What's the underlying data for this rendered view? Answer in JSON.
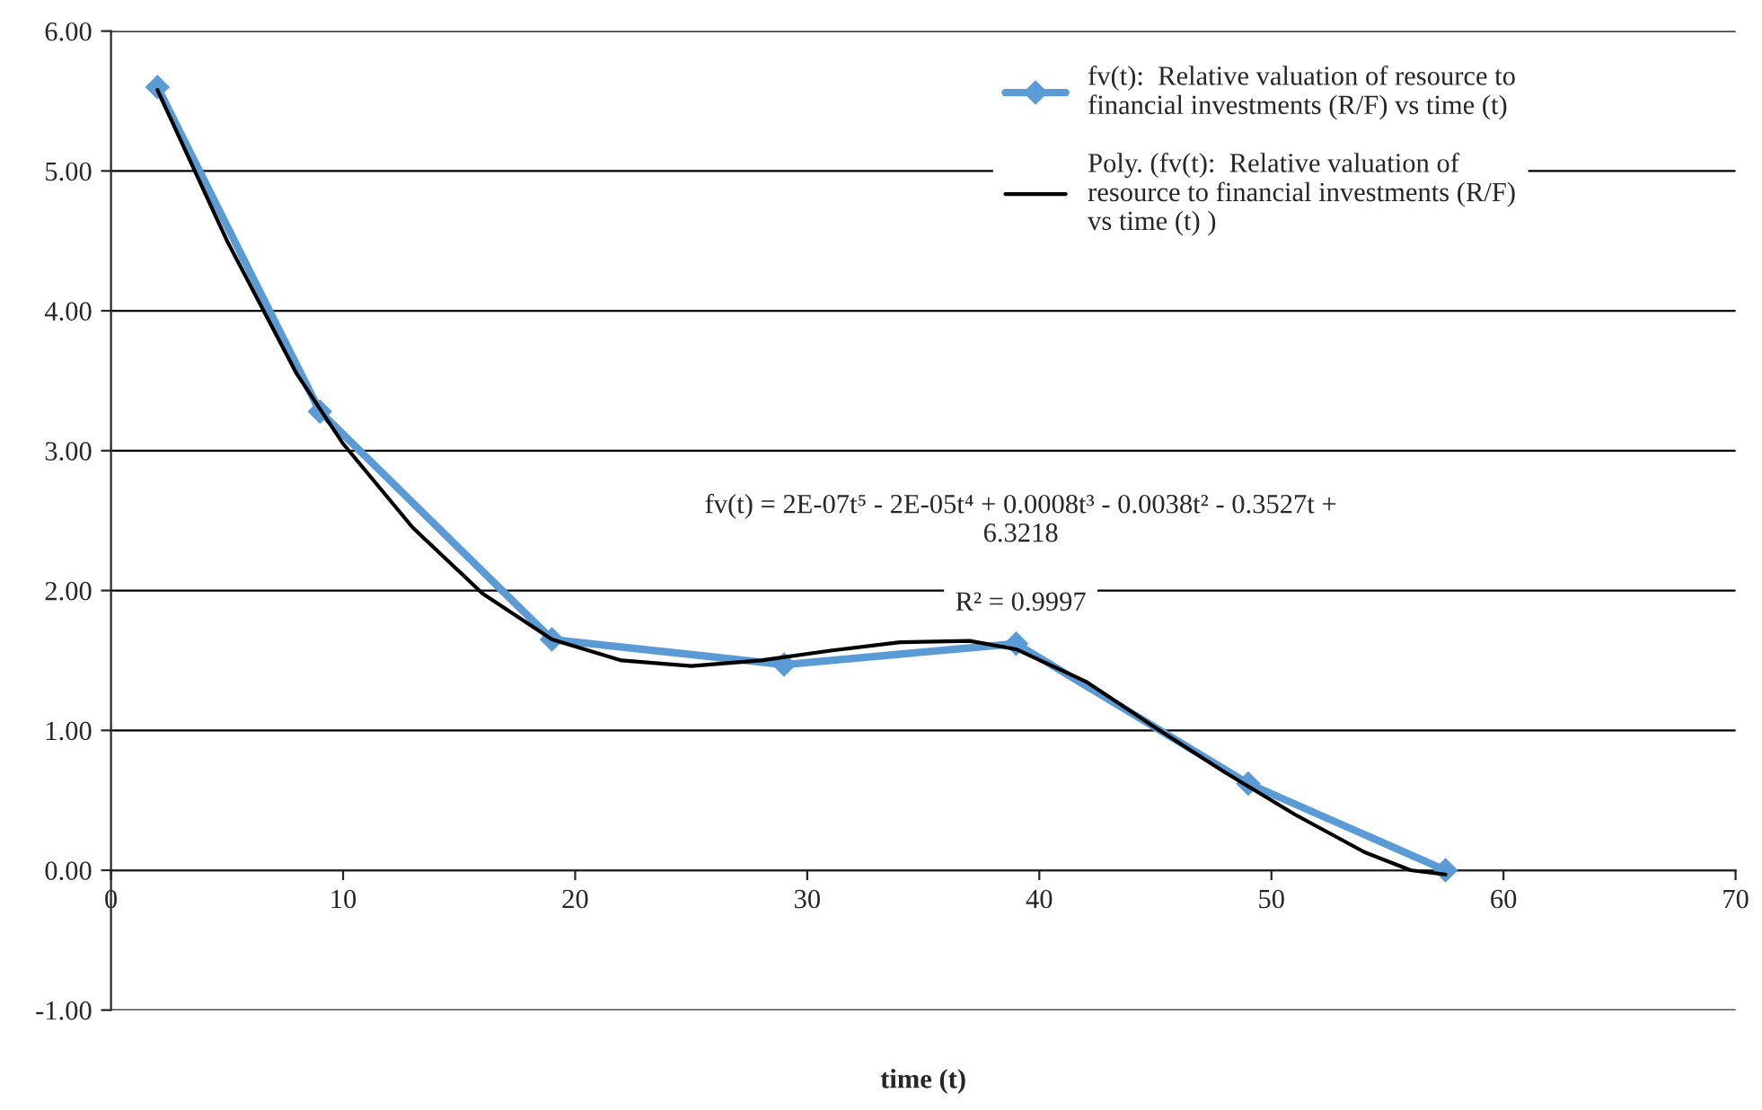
{
  "chart_data": {
    "type": "line",
    "xlabel": "time (t)",
    "xlim": [
      0,
      70
    ],
    "xticks": [
      0,
      10,
      20,
      30,
      40,
      50,
      60,
      70
    ],
    "ylim": [
      -1,
      6
    ],
    "yticks": [
      {
        "value": -1,
        "label": "-1.00"
      },
      {
        "value": 0,
        "label": "0.00"
      },
      {
        "value": 1,
        "label": "1.00"
      },
      {
        "value": 2,
        "label": "2.00"
      },
      {
        "value": 3,
        "label": "3.00"
      },
      {
        "value": 4,
        "label": "4.00"
      },
      {
        "value": 5,
        "label": "5.00"
      },
      {
        "value": 6,
        "label": "6.00"
      }
    ],
    "grid": "y",
    "legend": "top right",
    "series": [
      {
        "name": "fv(t):  Relative valuation of resource to\nfinancial investments (R/F) vs time (t)",
        "color": "#5b9bd5",
        "marker": "diamond",
        "line_style": "solid",
        "x": [
          2,
          9,
          19,
          29,
          39,
          49,
          57.5
        ],
        "values": [
          5.6,
          3.28,
          1.65,
          1.47,
          1.62,
          0.62,
          0.0
        ]
      },
      {
        "name": "Poly. (fv(t):  Relative valuation of\nresource to financial investments (R/F)\nvs time (t) )",
        "color": "#000000",
        "marker": "none",
        "line_style": "solid",
        "x": [
          2,
          5,
          8,
          10,
          13,
          16,
          19,
          22,
          25,
          28,
          31,
          34,
          37,
          39,
          42,
          45,
          48,
          51,
          54,
          56,
          57.5
        ],
        "values": [
          5.58,
          4.5,
          3.55,
          3.05,
          2.45,
          1.98,
          1.65,
          1.5,
          1.46,
          1.5,
          1.57,
          1.63,
          1.64,
          1.58,
          1.35,
          1.02,
          0.7,
          0.4,
          0.13,
          0.0,
          -0.03
        ]
      }
    ],
    "annotations": [
      "fv(t) = 2E-07t⁵ - 2E-05t⁴ + 0.0008t³ - 0.0038t² - 0.3527t +\n6.3218",
      "R² = 0.9997"
    ]
  }
}
